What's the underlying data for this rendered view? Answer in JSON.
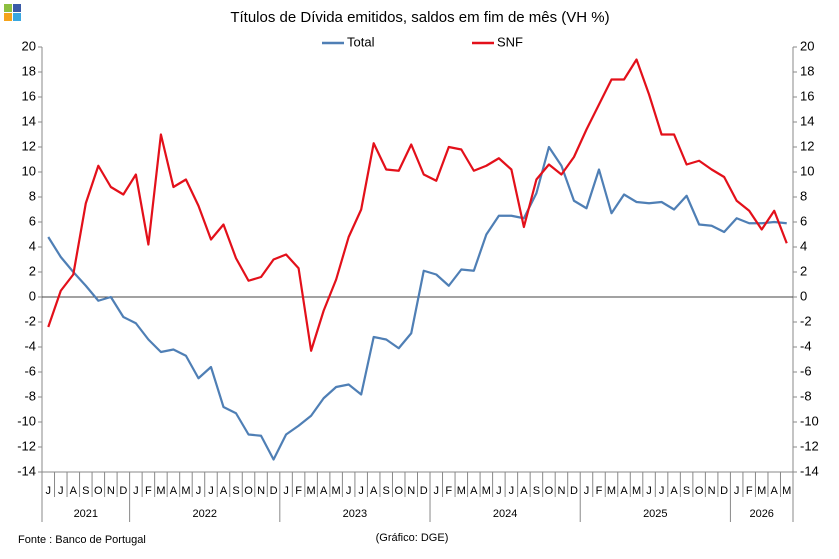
{
  "chart_data": {
    "type": "line",
    "title": "Títulos de Dívida emitidos, saldos em fim de mês  (VH %)",
    "source": "Fonte : Banco de Portugal",
    "credit": "(Gráfico: DGE)",
    "categories": [
      "J",
      "J",
      "A",
      "S",
      "O",
      "N",
      "D",
      "J",
      "F",
      "M",
      "A",
      "M",
      "J",
      "J",
      "A",
      "S",
      "O",
      "N",
      "D",
      "J",
      "F",
      "M",
      "A",
      "M",
      "J",
      "J",
      "A",
      "S",
      "O",
      "N",
      "D",
      "J",
      "F",
      "M",
      "A",
      "M",
      "J",
      "J",
      "A",
      "S",
      "O",
      "N",
      "D",
      "J",
      "F",
      "M",
      "A",
      "M",
      "J",
      "J",
      "A",
      "S",
      "O",
      "N",
      "D",
      "J",
      "F",
      "M",
      "A",
      "M"
    ],
    "years": [
      "2021",
      "2022",
      "2023",
      "2024",
      "2025",
      "2026"
    ],
    "series": [
      {
        "name": "Total",
        "color": "#4f7fb5",
        "values": [
          4.8,
          3.2,
          2.0,
          0.9,
          -0.3,
          0.0,
          -1.6,
          -2.1,
          -3.4,
          -4.4,
          -4.2,
          -4.7,
          -6.5,
          -5.6,
          -8.8,
          -9.3,
          -11.0,
          -11.1,
          -13.0,
          -11.0,
          -10.3,
          -9.5,
          -8.1,
          -7.2,
          -7.0,
          -7.8,
          -3.2,
          -3.4,
          -4.1,
          -2.9,
          2.1,
          1.8,
          0.9,
          2.2,
          2.1,
          5.0,
          6.5,
          6.5,
          6.3,
          8.3,
          12.0,
          10.5,
          7.7,
          7.1,
          10.2,
          6.7,
          8.2,
          7.6,
          7.5,
          7.6,
          7.0,
          8.1,
          5.8,
          5.7,
          5.2,
          6.3,
          5.9,
          5.9,
          6.0,
          5.9
        ]
      },
      {
        "name": "SNF",
        "color": "#e3101a",
        "values": [
          -2.4,
          0.5,
          1.8,
          7.5,
          10.5,
          8.8,
          8.2,
          9.8,
          4.2,
          13.0,
          8.8,
          9.4,
          7.3,
          4.6,
          5.8,
          3.1,
          1.3,
          1.6,
          3.0,
          3.4,
          2.3,
          -4.3,
          -1.1,
          1.4,
          4.8,
          7.0,
          12.3,
          10.2,
          10.1,
          12.2,
          9.8,
          9.3,
          12.0,
          11.8,
          10.1,
          10.5,
          11.1,
          10.2,
          5.6,
          9.4,
          10.6,
          9.8,
          11.2,
          13.4,
          15.4,
          17.4,
          17.4,
          19.0,
          16.2,
          13.0,
          13.0,
          10.6,
          10.9,
          10.2,
          9.6,
          7.7,
          6.9,
          5.4,
          6.9,
          4.3
        ]
      }
    ],
    "ylim": [
      -14,
      20
    ],
    "yticks": [
      -14,
      -12,
      -10,
      -8,
      -6,
      -4,
      -2,
      0,
      2,
      4,
      6,
      8,
      10,
      12,
      14,
      16,
      18,
      20
    ],
    "y2lim": [
      -14,
      20
    ],
    "y2ticks": [
      -14,
      -12,
      -10,
      -8,
      -6,
      -4,
      -2,
      0,
      2,
      4,
      6,
      8,
      10,
      12,
      14,
      16,
      18,
      20
    ],
    "grid": false
  }
}
